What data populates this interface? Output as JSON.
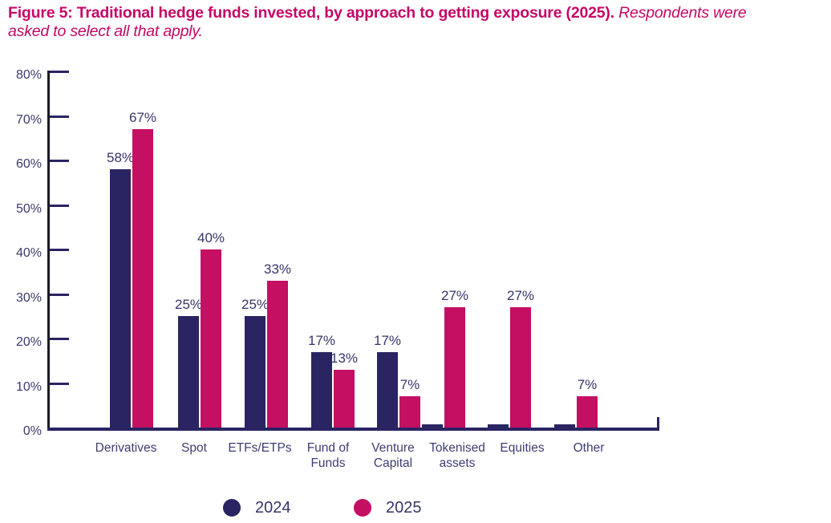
{
  "header": {
    "title_bold": "Figure 5: Traditional hedge funds invested, by approach to getting exposure (2025).",
    "title_italic_line1": "Respondents were",
    "title_italic_line2": "asked to select all that apply."
  },
  "colors": {
    "title": "#C60866",
    "series_2024": "#2A2462",
    "series_2025": "#C40F63",
    "axis_vertical": "#1B1B26",
    "axis_baseline": "#2A2462",
    "text_navy": "#3A3A6E"
  },
  "chart_data": {
    "type": "bar",
    "title": "Figure 5: Traditional hedge funds invested, by approach to getting exposure (2025).",
    "subtitle": "Respondents were asked to select all that apply.",
    "categories": [
      "Derivatives",
      "Spot",
      "ETFs/ETPs",
      "Fund of Funds",
      "Venture Capital",
      "Tokenised assets",
      "Equities",
      "Other"
    ],
    "category_label_lines": [
      [
        "Derivatives"
      ],
      [
        "Spot"
      ],
      [
        "ETFs/ETPs"
      ],
      [
        "Fund of",
        "Funds"
      ],
      [
        "Venture",
        "Capital"
      ],
      [
        "Tokenised",
        "assets"
      ],
      [
        "Equities"
      ],
      [
        "Other"
      ]
    ],
    "series": [
      {
        "name": "2024",
        "color": "#2A2462",
        "values": [
          58,
          25,
          25,
          17,
          17,
          0,
          0,
          0
        ]
      },
      {
        "name": "2025",
        "color": "#C40F63",
        "values": [
          67,
          40,
          33,
          13,
          7,
          27,
          27,
          7
        ]
      }
    ],
    "value_labels": {
      "2024": [
        "58%",
        "25%",
        "25%",
        "17%",
        "17%",
        "",
        "",
        ""
      ],
      "2025": [
        "67%",
        "40%",
        "33%",
        "13%",
        "7%",
        "27%",
        "27%",
        "7%"
      ]
    },
    "ylim": [
      0,
      80
    ],
    "yticks": [
      0,
      10,
      20,
      30,
      40,
      50,
      60,
      70,
      80
    ],
    "ytick_labels": [
      "0%",
      "10%",
      "20%",
      "30%",
      "40%",
      "50%",
      "60%",
      "70%",
      "80%"
    ],
    "grid": false,
    "legend_position": "bottom"
  }
}
